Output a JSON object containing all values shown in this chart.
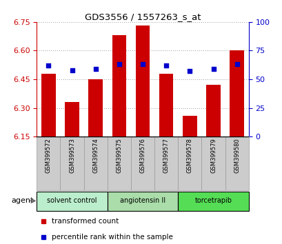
{
  "title": "GDS3556 / 1557263_s_at",
  "samples": [
    "GSM399572",
    "GSM399573",
    "GSM399574",
    "GSM399575",
    "GSM399576",
    "GSM399577",
    "GSM399578",
    "GSM399579",
    "GSM399580"
  ],
  "bar_values": [
    6.48,
    6.33,
    6.45,
    6.68,
    6.73,
    6.48,
    6.26,
    6.42,
    6.6
  ],
  "percentile_values": [
    62,
    58,
    59,
    63,
    63,
    62,
    57,
    59,
    63
  ],
  "ylim_left": [
    6.15,
    6.75
  ],
  "ylim_right": [
    0,
    100
  ],
  "yticks_left": [
    6.15,
    6.3,
    6.45,
    6.6,
    6.75
  ],
  "yticks_right": [
    0,
    25,
    50,
    75,
    100
  ],
  "bar_color": "#cc0000",
  "dot_color": "#0000cc",
  "bar_width": 0.6,
  "groups": [
    {
      "label": "solvent control",
      "indices": [
        0,
        1,
        2
      ],
      "color": "#bbeecc"
    },
    {
      "label": "angiotensin II",
      "indices": [
        3,
        4,
        5
      ],
      "color": "#aaddaa"
    },
    {
      "label": "torcetrapib",
      "indices": [
        6,
        7,
        8
      ],
      "color": "#55dd55"
    }
  ],
  "agent_label": "agent",
  "legend_items": [
    {
      "color": "#cc0000",
      "label": "transformed count"
    },
    {
      "color": "#0000cc",
      "label": "percentile rank within the sample"
    }
  ],
  "grid_color": "#aaaaaa",
  "plot_bg": "#ffffff",
  "tick_bg": "#cccccc",
  "group_border_color": "#000000",
  "sample_border_color": "#999999"
}
